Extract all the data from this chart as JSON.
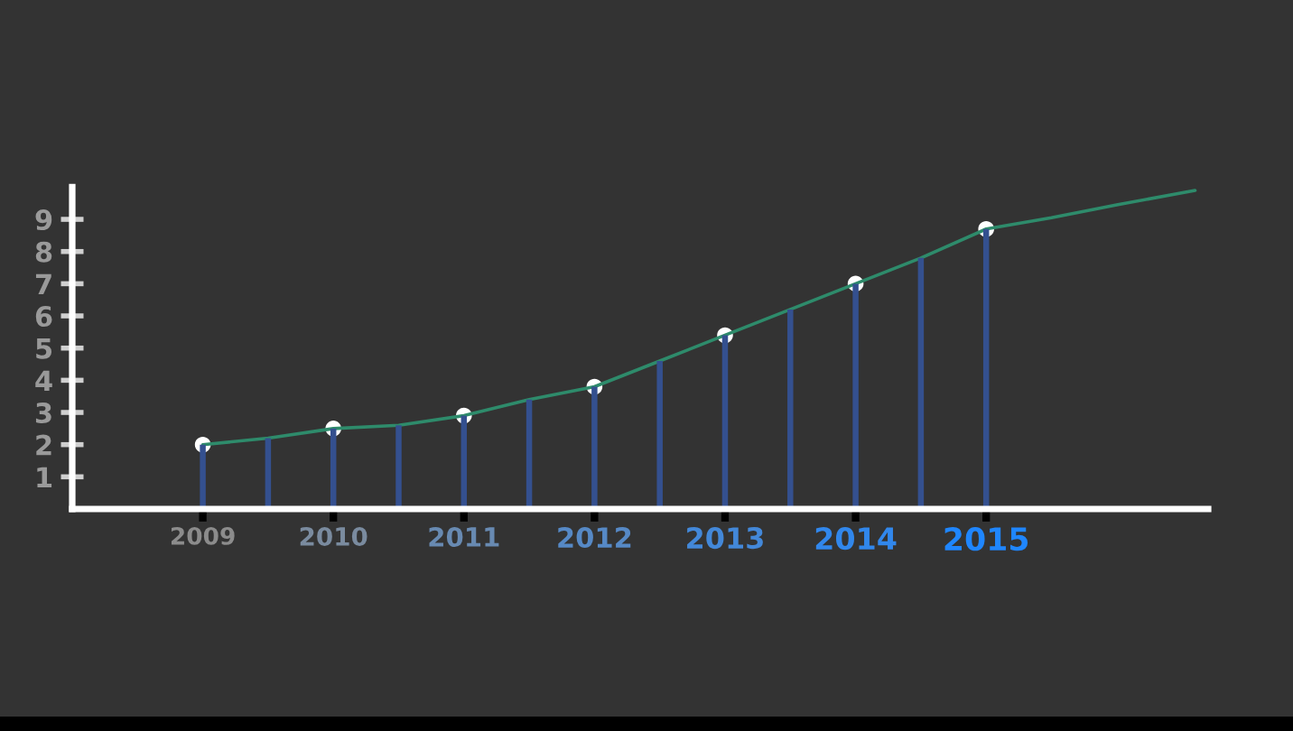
{
  "chart_data": {
    "type": "bar",
    "xlim": [
      2008,
      2016.7
    ],
    "xticks": [
      2009,
      2010,
      2011,
      2012,
      2013,
      2014,
      2015
    ],
    "ylim": [
      0,
      10
    ],
    "yticks": [
      1,
      2,
      3,
      4,
      5,
      6,
      7,
      8,
      9
    ],
    "grid": false,
    "series": [
      {
        "color": "#34508f",
        "x": [
          2009,
          2009.5,
          2010,
          2010.5,
          2011,
          2011.5,
          2012,
          2012.5,
          2013,
          2013.5,
          2014,
          2014.5,
          2015
        ],
        "values": [
          2.0,
          2.2,
          2.5,
          2.6,
          2.9,
          3.4,
          3.8,
          4.6,
          5.4,
          6.2,
          7.0,
          7.8,
          8.7
        ]
      },
      {
        "type": "line",
        "color": "#2e8b6b",
        "x": [
          2009,
          2009.5,
          2010,
          2010.5,
          2011,
          2011.5,
          2012,
          2012.5,
          2013,
          2013.5,
          2014,
          2014.5,
          2015,
          2015.5,
          2016,
          2016.6
        ],
        "values": [
          2.0,
          2.2,
          2.5,
          2.6,
          2.9,
          3.4,
          3.8,
          4.6,
          5.4,
          6.2,
          7.0,
          7.8,
          8.7,
          9.05,
          9.45,
          9.9
        ]
      },
      {
        "type": "scatter",
        "color": "#ffffff",
        "marker": "circle",
        "x": [
          2009,
          2010,
          2011,
          2012,
          2013,
          2014,
          2015
        ],
        "values": [
          2.0,
          2.5,
          2.9,
          3.8,
          5.4,
          7.0,
          8.7
        ]
      }
    ]
  }
}
